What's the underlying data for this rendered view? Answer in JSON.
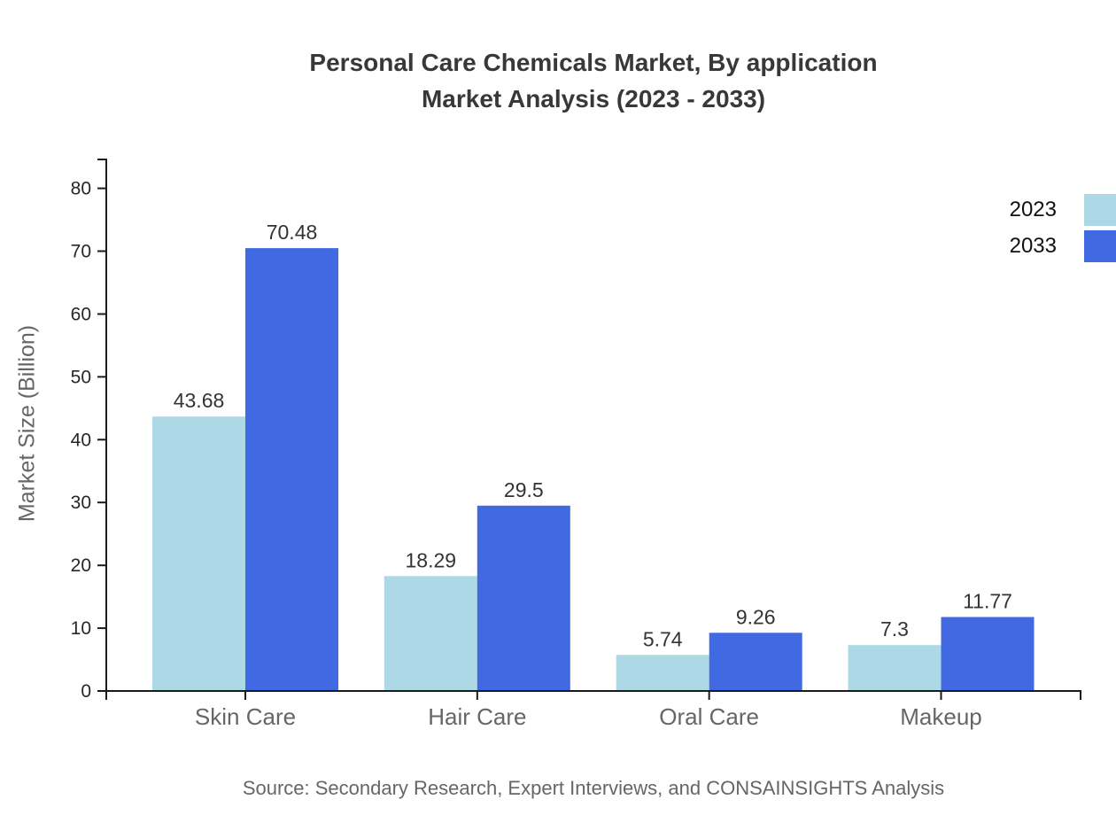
{
  "title": {
    "line1": "Personal Care Chemicals Market, By application",
    "line2": "Market Analysis (2023 - 2033)"
  },
  "legend": [
    {
      "label": "2023",
      "color": "#ADD8E6"
    },
    {
      "label": "2033",
      "color": "#4169E1"
    }
  ],
  "chart_data": {
    "type": "bar",
    "categories": [
      "Skin Care",
      "Hair Care",
      "Oral Care",
      "Makeup"
    ],
    "series": [
      {
        "name": "2023",
        "color": "#ADD8E6",
        "values": [
          43.68,
          18.29,
          5.74,
          7.3
        ]
      },
      {
        "name": "2033",
        "color": "#4169E1",
        "values": [
          70.48,
          29.5,
          9.26,
          11.77
        ]
      }
    ],
    "title": "Personal Care Chemicals Market, By application Market Analysis (2023 - 2033)",
    "xlabel": "",
    "ylabel": "Market Size (Billion)",
    "yticks": [
      0,
      10,
      20,
      30,
      40,
      50,
      60,
      70,
      80
    ],
    "ylim": [
      0,
      84.6
    ],
    "grid": false,
    "legend_position": "top-right",
    "value_labels": true
  },
  "source": "Source: Secondary Research, Expert Interviews, and CONSAINSIGHTS Analysis"
}
